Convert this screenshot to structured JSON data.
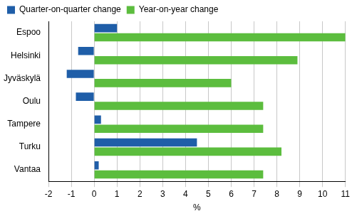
{
  "chart_data": {
    "type": "bar",
    "orientation": "horizontal",
    "categories": [
      "Espoo",
      "Helsinki",
      "Jyväskylä",
      "Oulu",
      "Tampere",
      "Turku",
      "Vantaa"
    ],
    "series": [
      {
        "name": "Quarter-on-quarter change",
        "color": "#1f5ea8",
        "values": [
          1.0,
          -0.7,
          -1.2,
          -0.8,
          0.3,
          4.5,
          0.2
        ]
      },
      {
        "name": "Year-on-year change",
        "color": "#5cbd3e",
        "values": [
          11.0,
          8.9,
          6.0,
          7.4,
          7.4,
          8.2,
          7.4
        ]
      }
    ],
    "x_label": "%",
    "xlim": [
      -2,
      11
    ],
    "xticks": [
      -2,
      -1,
      0,
      1,
      2,
      3,
      4,
      5,
      6,
      7,
      8,
      9,
      10,
      11
    ],
    "grid": true,
    "legend": "top-left"
  }
}
